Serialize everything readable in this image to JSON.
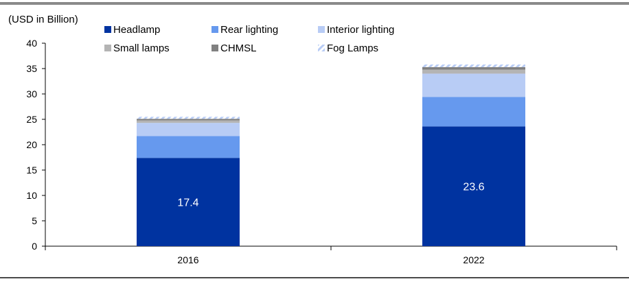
{
  "chart_data": {
    "type": "bar",
    "stacked": true,
    "ylabel": "(USD in Billion)",
    "ylim": [
      0,
      40
    ],
    "yticks": [
      0,
      5,
      10,
      15,
      20,
      25,
      30,
      35,
      40
    ],
    "grid": false,
    "legend_position": "top",
    "categories": [
      "2016",
      "2022"
    ],
    "series": [
      {
        "name": "Headlamp",
        "values": [
          17.4,
          23.6
        ],
        "color": "#0033a0",
        "labels": [
          "17.4",
          "23.6"
        ]
      },
      {
        "name": "Rear lighting",
        "values": [
          4.3,
          5.8
        ],
        "color": "#6699ee"
      },
      {
        "name": "Interior lighting",
        "values": [
          2.6,
          4.6
        ],
        "color": "#b8ccf5"
      },
      {
        "name": "Small lamps",
        "values": [
          0.5,
          0.8
        ],
        "color": "#b4b4b4"
      },
      {
        "name": "CHMSL",
        "values": [
          0.3,
          0.5
        ],
        "color": "#808080"
      },
      {
        "name": "Fog Lamps",
        "values": [
          0.4,
          0.5
        ],
        "color": "#b8ccf5",
        "pattern": "hatch"
      }
    ]
  }
}
